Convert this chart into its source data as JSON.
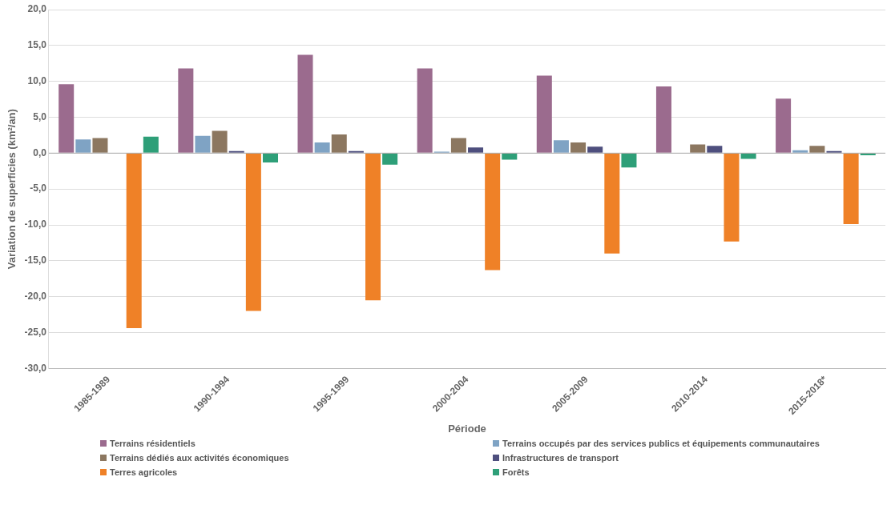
{
  "chart_data": {
    "type": "bar",
    "xlabel": "Période",
    "ylabel": "Variation de superficies (km²/an)",
    "categories": [
      "1985-1989",
      "1990-1994",
      "1995-1999",
      "2000-2004",
      "2005-2009",
      "2010-2014",
      "2015-2018*"
    ],
    "series": [
      {
        "name": "Terrains résidentiels",
        "color": "#9b6b8e",
        "values": [
          9.6,
          11.8,
          13.7,
          11.8,
          10.8,
          9.3,
          7.6
        ]
      },
      {
        "name": "Terrains occupés par des services publics et équipements communautaires",
        "color": "#7fa3c4",
        "values": [
          1.9,
          2.4,
          1.5,
          0.2,
          1.8,
          null,
          0.4
        ]
      },
      {
        "name": "Terrains dédiés aux activités économiques",
        "color": "#8c7760",
        "values": [
          2.1,
          3.1,
          2.6,
          2.1,
          1.5,
          1.2,
          1.0
        ]
      },
      {
        "name": "Infrastructures de transport",
        "color": "#4e4f7e",
        "values": [
          null,
          0.3,
          0.3,
          0.8,
          0.9,
          1.0,
          0.3
        ]
      },
      {
        "name": "Terres agricoles",
        "color": "#ef8127",
        "values": [
          -24.4,
          -22.0,
          -20.5,
          -16.3,
          -14.0,
          -12.3,
          -9.9
        ]
      },
      {
        "name": "Forêts",
        "color": "#2e9f78",
        "values": [
          2.3,
          -1.3,
          -1.6,
          -0.9,
          -2.0,
          -0.8,
          -0.3
        ]
      }
    ],
    "ylim": [
      -30,
      20
    ],
    "yticks": [
      {
        "value": -30,
        "label": "-30,0"
      },
      {
        "value": -25,
        "label": "-25,0"
      },
      {
        "value": -20,
        "label": "-20,0"
      },
      {
        "value": -15,
        "label": "-15,0"
      },
      {
        "value": -10,
        "label": "-10,0"
      },
      {
        "value": -5,
        "label": "-5,0"
      },
      {
        "value": 0,
        "label": "0,0"
      },
      {
        "value": 5,
        "label": "5,0"
      },
      {
        "value": 10,
        "label": "10,0"
      },
      {
        "value": 15,
        "label": "15,0"
      },
      {
        "value": 20,
        "label": "20,0"
      }
    ],
    "grid": "y",
    "legend": "bottom"
  }
}
